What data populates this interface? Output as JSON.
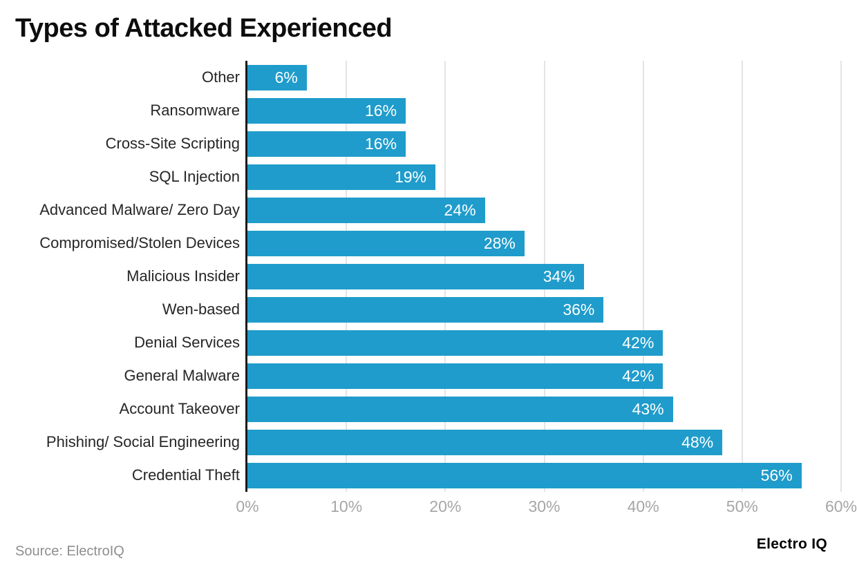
{
  "title": "Types of Attacked Experienced",
  "source_note": "Source: ElectroIQ",
  "brand": "Electro IQ",
  "colors": {
    "bar": "#1F9CCB",
    "axis_line": "#1a1a1a",
    "gridline": "#e4e4e4",
    "tick_text": "#a6a6a6",
    "category_text": "#262626",
    "value_text": "#ffffff"
  },
  "chart_data": {
    "type": "bar",
    "orientation": "horizontal",
    "title": "Types of Attacked Experienced",
    "categories": [
      "Other",
      "Ransomware",
      "Cross-Site Scripting",
      "SQL Injection",
      "Advanced Malware/ Zero Day",
      "Compromised/Stolen Devices",
      "Malicious Insider",
      "Wen-based",
      "Denial Services",
      "General Malware",
      "Account Takeover",
      "Phishing/ Social Engineering",
      "Credential Theft"
    ],
    "values": [
      6,
      16,
      16,
      19,
      24,
      28,
      34,
      36,
      42,
      42,
      43,
      48,
      56
    ],
    "value_labels": [
      "6%",
      "16%",
      "16%",
      "19%",
      "24%",
      "28%",
      "34%",
      "36%",
      "42%",
      "42%",
      "43%",
      "48%",
      "56%"
    ],
    "xlabel": "",
    "ylabel": "",
    "xlim": [
      0,
      60
    ],
    "xticks": [
      0,
      10,
      20,
      30,
      40,
      50,
      60
    ],
    "xtick_labels": [
      "0%",
      "10%",
      "20%",
      "30%",
      "40%",
      "50%",
      "60%"
    ],
    "grid": true,
    "legend": false
  }
}
